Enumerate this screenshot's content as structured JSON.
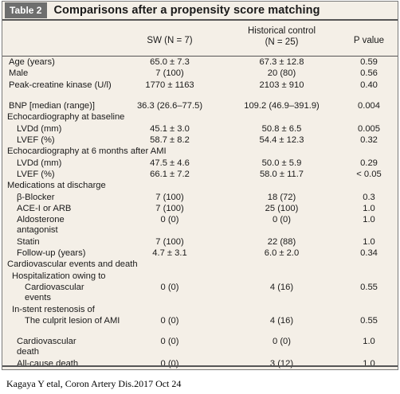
{
  "table": {
    "tag": "Table 2",
    "title": "Comparisons after a propensity score matching",
    "headers": {
      "col1": "SW (N = 7)",
      "col2_line1": "Historical control",
      "col2_line2": "(N = 25)",
      "col3": "P value"
    },
    "rows": [
      {
        "label": "Age (years)",
        "sw": "65.0 ± 7.3",
        "hc": "67.3 ± 12.8",
        "p": "0.59"
      },
      {
        "label": "Male",
        "sw": "7 (100)",
        "hc": "20 (80)",
        "p": "0.56"
      },
      {
        "label": "Peak-creatine kinase (U/l)",
        "sw": "1770 ± 1163",
        "hc": "2103 ± 910",
        "p": "0.40"
      },
      {
        "label": "BNP [median (range)]",
        "sw": "36.3 (26.6–77.5)",
        "hc": "109.2 (46.9–391.9)",
        "p": "0.004"
      },
      {
        "label": "Echocardiography at baseline",
        "section": true
      },
      {
        "label": "LVDd (mm)",
        "sw": "45.1 ± 3.0",
        "hc": "50.8 ± 6.5",
        "p": "0.005"
      },
      {
        "label": "LVEF (%)",
        "sw": "58.7 ± 8.2",
        "hc": "54.4 ± 12.3",
        "p": "0.32"
      },
      {
        "label": "Echocardiography at 6 months after AMI",
        "section": true
      },
      {
        "label": "LVDd (mm)",
        "sw": "47.5 ± 4.6",
        "hc": "50.0 ± 5.9",
        "p": "0.29"
      },
      {
        "label": "LVEF (%)",
        "sw": "66.1 ± 7.2",
        "hc": "58.0 ± 11.7",
        "p": "< 0.05"
      },
      {
        "label": "Medications at discharge",
        "section": true
      },
      {
        "label": "β-Blocker",
        "sw": "7 (100)",
        "hc": "18 (72)",
        "p": "0.3"
      },
      {
        "label": "ACE-I or ARB",
        "sw": "7 (100)",
        "hc": "25 (100)",
        "p": "1.0"
      },
      {
        "label": "Aldosterone antagonist",
        "sw": "0 (0)",
        "hc": "0 (0)",
        "p": "1.0"
      },
      {
        "label": "Statin",
        "sw": "7 (100)",
        "hc": "22 (88)",
        "p": "1.0"
      },
      {
        "label": "Follow-up (years)",
        "sw": "4.7 ± 3.1",
        "hc": "6.0 ± 2.0",
        "p": "0.34"
      },
      {
        "label": "Cardiovascular events and death",
        "section": true
      },
      {
        "label": "Hospitalization owing to",
        "section": true
      },
      {
        "label": "Cardiovascular events",
        "sw": "0 (0)",
        "hc": "4 (16)",
        "p": "0.55"
      },
      {
        "label": "In-stent restenosis of",
        "section": true
      },
      {
        "label": "The culprit lesion of AMI",
        "sw": "0 (0)",
        "hc": "4 (16)",
        "p": "0.55"
      },
      {
        "label": "Cardiovascular death",
        "sw": "0 (0)",
        "hc": "0 (0)",
        "p": "1.0"
      },
      {
        "label": "All-cause death",
        "sw": "0 (0)",
        "hc": "3 (12)",
        "p": "1.0"
      }
    ]
  },
  "caption": "Kagaya Y etal, Coron Artery Dis.2017 Oct 24"
}
